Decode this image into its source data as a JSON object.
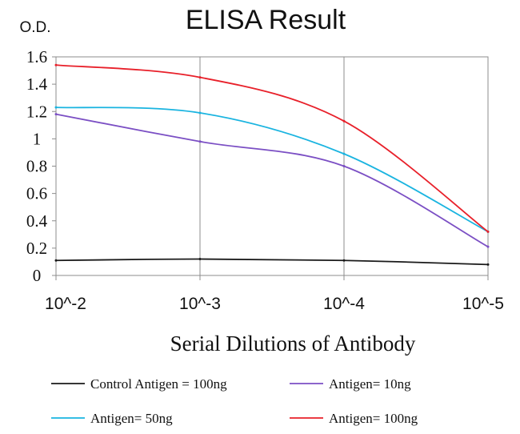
{
  "chart_data": {
    "type": "line",
    "title": "ELISA Result",
    "ylabel": "O.D.",
    "xlabel": "Serial Dilutions of Antibody",
    "categories": [
      "10^-2",
      "10^-3",
      "10^-4",
      "10^-5"
    ],
    "ylim": [
      0,
      1.6
    ],
    "yticks": [
      "0",
      "0.2",
      "0.4",
      "0.6",
      "0.8",
      "1",
      "1.2",
      "1.4",
      "1.6"
    ],
    "grid": "vertical",
    "legend_position": "bottom",
    "series": [
      {
        "name": "Control Antigen = 100ng",
        "color": "#1a1a1a",
        "values": [
          0.11,
          0.12,
          0.11,
          0.08
        ]
      },
      {
        "name": "Antigen= 10ng",
        "color": "#7b4fc4",
        "values": [
          1.18,
          0.98,
          0.8,
          0.21
        ]
      },
      {
        "name": "Antigen= 50ng",
        "color": "#1ab4e0",
        "values": [
          1.23,
          1.19,
          0.89,
          0.32
        ]
      },
      {
        "name": "Antigen= 100ng",
        "color": "#e8202a",
        "values": [
          1.54,
          1.45,
          1.13,
          0.32
        ]
      }
    ]
  }
}
